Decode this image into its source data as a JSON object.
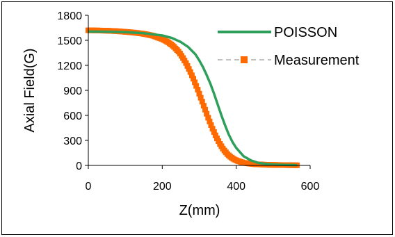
{
  "colors": {
    "poisson": "#2e9e5b",
    "measurement": "#ff6a00",
    "axis": "#000000",
    "frame": "#000000",
    "background": "#ffffff"
  },
  "chart_data": {
    "type": "line",
    "title": "",
    "xlabel": "Z(mm)",
    "ylabel": "Axial Field(G)",
    "xlim": [
      0,
      600
    ],
    "ylim": [
      0,
      1800
    ],
    "xticks": [
      0,
      200,
      400,
      600
    ],
    "yticks": [
      0,
      300,
      600,
      900,
      1200,
      1500,
      1800
    ],
    "xtick_labels": [
      "0",
      "200",
      "400",
      "600"
    ],
    "ytick_labels": [
      "0",
      "300",
      "600",
      "900",
      "1200",
      "1500",
      "1800"
    ],
    "grid": false,
    "legend": "top-right",
    "series": [
      {
        "name": "POISSON",
        "style": "solid line",
        "x": [
          0,
          50,
          100,
          150,
          200,
          225,
          250,
          270,
          290,
          300,
          310,
          320,
          330,
          340,
          350,
          360,
          370,
          380,
          390,
          400,
          420,
          440,
          460,
          480,
          500,
          530,
          565
        ],
        "y": [
          1605,
          1603,
          1598,
          1585,
          1558,
          1530,
          1480,
          1420,
          1330,
          1260,
          1180,
          1085,
          980,
          860,
          730,
          600,
          480,
          370,
          280,
          210,
          110,
          60,
          30,
          18,
          10,
          6,
          3
        ]
      },
      {
        "name": "Measurement",
        "style": "dashed line with square markers",
        "x": [
          0,
          25,
          50,
          75,
          100,
          125,
          150,
          175,
          200,
          215,
          230,
          245,
          255,
          265,
          275,
          285,
          295,
          305,
          315,
          325,
          335,
          345,
          355,
          365,
          375,
          385,
          395,
          405,
          420,
          435,
          450,
          470,
          490,
          510,
          530,
          550,
          565
        ],
        "y": [
          1620,
          1618,
          1615,
          1610,
          1602,
          1592,
          1578,
          1555,
          1515,
          1480,
          1430,
          1360,
          1295,
          1220,
          1130,
          1030,
          920,
          800,
          680,
          560,
          450,
          350,
          265,
          195,
          140,
          100,
          72,
          52,
          32,
          22,
          15,
          10,
          7,
          5,
          4,
          3,
          2
        ]
      }
    ]
  }
}
